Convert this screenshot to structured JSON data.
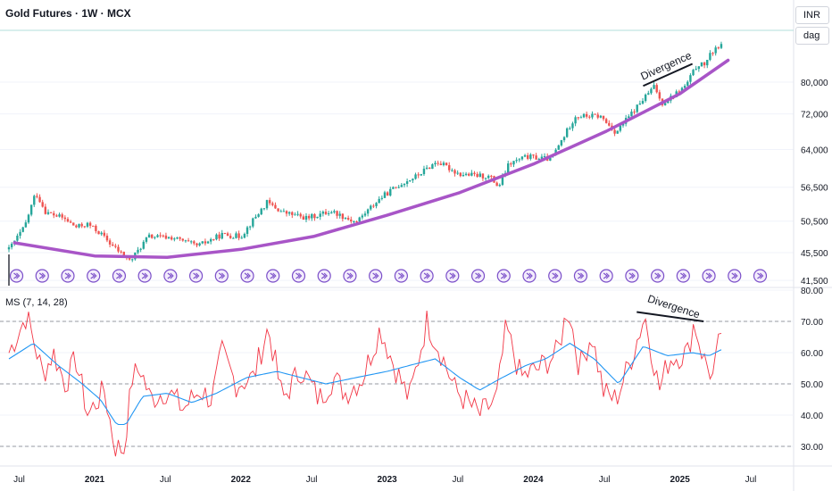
{
  "header": {
    "title": "Gold Futures · 1W · MCX"
  },
  "currency_button": "INR",
  "unit_button": "dag",
  "indicator": {
    "label": "MS (7, 14, 28)"
  },
  "annotations": {
    "price_divergence": "Divergence",
    "osc_divergence": "Divergence"
  },
  "colors": {
    "up": "#26a69a",
    "down": "#ef5350",
    "curve": "#a855c7",
    "fast": "#f23645",
    "slow": "#2196f3",
    "event": "#7b4fc9",
    "grid": "#f0f3fa",
    "axis_text": "#131722",
    "dashed": "#9598a1"
  },
  "icons": {
    "event_marker": "dividend-event-icon"
  },
  "chart_data": [
    {
      "type": "candlestick",
      "title": "Gold Futures · 1W · MCX",
      "scale": "log",
      "y_ticks": [
        41500,
        45500,
        50500,
        56500,
        64000,
        72000,
        80000
      ],
      "x_tick_labels": [
        "Jul",
        "2021",
        "Jul",
        "2022",
        "Jul",
        "2023",
        "Jul",
        "2024",
        "Jul",
        "2025",
        "Jul"
      ],
      "x_range": [
        "2020-06",
        "2025-08"
      ],
      "anchors": [
        {
          "date": "2020-06-01",
          "close": 46000
        },
        {
          "date": "2020-07-10",
          "close": 49500
        },
        {
          "date": "2020-08-07",
          "close": 55500
        },
        {
          "date": "2020-09-01",
          "close": 52000
        },
        {
          "date": "2020-10-15",
          "close": 51000
        },
        {
          "date": "2020-11-15",
          "close": 49500
        },
        {
          "date": "2020-12-15",
          "close": 50000
        },
        {
          "date": "2021-01-15",
          "close": 48500
        },
        {
          "date": "2021-02-15",
          "close": 46500
        },
        {
          "date": "2021-03-31",
          "close": 44200
        },
        {
          "date": "2021-05-15",
          "close": 48000
        },
        {
          "date": "2021-07-15",
          "close": 47800
        },
        {
          "date": "2021-09-15",
          "close": 46500
        },
        {
          "date": "2021-11-15",
          "close": 48300
        },
        {
          "date": "2022-01-01",
          "close": 48000
        },
        {
          "date": "2022-03-07",
          "close": 53700
        },
        {
          "date": "2022-04-15",
          "close": 52000
        },
        {
          "date": "2022-06-15",
          "close": 51000
        },
        {
          "date": "2022-08-15",
          "close": 52200
        },
        {
          "date": "2022-10-15",
          "close": 50300
        },
        {
          "date": "2022-12-15",
          "close": 54500
        },
        {
          "date": "2023-02-01",
          "close": 57000
        },
        {
          "date": "2023-03-15",
          "close": 58600
        },
        {
          "date": "2023-05-05",
          "close": 61500
        },
        {
          "date": "2023-07-01",
          "close": 59000
        },
        {
          "date": "2023-09-15",
          "close": 58500
        },
        {
          "date": "2023-10-06",
          "close": 56500
        },
        {
          "date": "2023-11-01",
          "close": 61000
        },
        {
          "date": "2023-12-15",
          "close": 62500
        },
        {
          "date": "2024-02-15",
          "close": 62000
        },
        {
          "date": "2024-03-15",
          "close": 66500
        },
        {
          "date": "2024-04-15",
          "close": 71500
        },
        {
          "date": "2024-05-15",
          "close": 71500
        },
        {
          "date": "2024-06-15",
          "close": 71500
        },
        {
          "date": "2024-07-25",
          "close": 67700
        },
        {
          "date": "2024-09-01",
          "close": 72000
        },
        {
          "date": "2024-10-30",
          "close": 79000
        },
        {
          "date": "2024-11-15",
          "close": 74500
        },
        {
          "date": "2024-12-15",
          "close": 76500
        },
        {
          "date": "2025-01-15",
          "close": 79000
        },
        {
          "date": "2025-02-15",
          "close": 85000
        },
        {
          "date": "2025-03-01",
          "close": 84500
        },
        {
          "date": "2025-04-01",
          "close": 90000
        }
      ],
      "support_curve": [
        {
          "date": "2020-06-15",
          "value": 47000
        },
        {
          "date": "2021-01-01",
          "value": 45000
        },
        {
          "date": "2021-07-01",
          "value": 44800
        },
        {
          "date": "2022-01-01",
          "value": 46000
        },
        {
          "date": "2022-07-01",
          "value": 48000
        },
        {
          "date": "2023-01-01",
          "value": 51500
        },
        {
          "date": "2023-07-01",
          "value": 55500
        },
        {
          "date": "2024-01-01",
          "value": 61000
        },
        {
          "date": "2024-07-01",
          "value": 68000
        },
        {
          "date": "2025-01-01",
          "value": 77000
        },
        {
          "date": "2025-05-01",
          "value": 86000
        }
      ],
      "divergence_line": [
        {
          "date": "2024-10-01",
          "value": 79000
        },
        {
          "date": "2025-02-01",
          "value": 85000
        }
      ]
    },
    {
      "type": "line",
      "title": "MS (7, 14, 28)",
      "ylim": [
        25,
        80
      ],
      "y_ticks": [
        30,
        40,
        50,
        60,
        70,
        80
      ],
      "reference_lines": [
        30,
        50,
        70
      ],
      "series": [
        {
          "name": "fast",
          "anchors": [
            {
              "date": "2020-06-01",
              "value": 60
            },
            {
              "date": "2020-07-15",
              "value": 72
            },
            {
              "date": "2020-08-25",
              "value": 53
            },
            {
              "date": "2020-09-20",
              "value": 60
            },
            {
              "date": "2020-10-20",
              "value": 50
            },
            {
              "date": "2020-11-15",
              "value": 58
            },
            {
              "date": "2020-12-15",
              "value": 40
            },
            {
              "date": "2021-01-25",
              "value": 48
            },
            {
              "date": "2021-02-20",
              "value": 30
            },
            {
              "date": "2021-03-15",
              "value": 29
            },
            {
              "date": "2021-04-05",
              "value": 52
            },
            {
              "date": "2021-04-25",
              "value": 55
            },
            {
              "date": "2021-05-20",
              "value": 45
            },
            {
              "date": "2021-07-01",
              "value": 48
            },
            {
              "date": "2021-08-10",
              "value": 42
            },
            {
              "date": "2021-09-20",
              "value": 48
            },
            {
              "date": "2021-10-20",
              "value": 45
            },
            {
              "date": "2021-11-15",
              "value": 60
            },
            {
              "date": "2021-12-20",
              "value": 50
            },
            {
              "date": "2022-02-01",
              "value": 52
            },
            {
              "date": "2022-03-10",
              "value": 68
            },
            {
              "date": "2022-04-15",
              "value": 45
            },
            {
              "date": "2022-06-01",
              "value": 55
            },
            {
              "date": "2022-07-15",
              "value": 45
            },
            {
              "date": "2022-08-20",
              "value": 52
            },
            {
              "date": "2022-09-20",
              "value": 47
            },
            {
              "date": "2022-11-01",
              "value": 52
            },
            {
              "date": "2022-12-15",
              "value": 68
            },
            {
              "date": "2023-01-15",
              "value": 57
            },
            {
              "date": "2023-02-25",
              "value": 45
            },
            {
              "date": "2023-04-10",
              "value": 70
            },
            {
              "date": "2023-05-15",
              "value": 60
            },
            {
              "date": "2023-06-20",
              "value": 48
            },
            {
              "date": "2023-08-20",
              "value": 40
            },
            {
              "date": "2023-10-01",
              "value": 45
            },
            {
              "date": "2023-10-25",
              "value": 68
            },
            {
              "date": "2023-12-01",
              "value": 52
            },
            {
              "date": "2024-01-15",
              "value": 55
            },
            {
              "date": "2024-03-01",
              "value": 60
            },
            {
              "date": "2024-03-28",
              "value": 75
            },
            {
              "date": "2024-04-25",
              "value": 55
            },
            {
              "date": "2024-05-25",
              "value": 66
            },
            {
              "date": "2024-06-25",
              "value": 47
            },
            {
              "date": "2024-07-25",
              "value": 45
            },
            {
              "date": "2024-09-01",
              "value": 58
            },
            {
              "date": "2024-10-05",
              "value": 72
            },
            {
              "date": "2024-11-10",
              "value": 48
            },
            {
              "date": "2024-12-05",
              "value": 58
            },
            {
              "date": "2025-01-20",
              "value": 60
            },
            {
              "date": "2025-02-05",
              "value": 70
            },
            {
              "date": "2025-03-01",
              "value": 58
            },
            {
              "date": "2025-03-25",
              "value": 52
            },
            {
              "date": "2025-04-15",
              "value": 68
            }
          ]
        },
        {
          "name": "slow",
          "anchors": [
            {
              "date": "2020-06-01",
              "value": 58
            },
            {
              "date": "2020-08-01",
              "value": 63
            },
            {
              "date": "2020-10-01",
              "value": 56
            },
            {
              "date": "2020-12-01",
              "value": 50
            },
            {
              "date": "2021-01-15",
              "value": 45
            },
            {
              "date": "2021-02-25",
              "value": 37
            },
            {
              "date": "2021-03-20",
              "value": 37
            },
            {
              "date": "2021-05-01",
              "value": 46
            },
            {
              "date": "2021-07-01",
              "value": 47
            },
            {
              "date": "2021-09-01",
              "value": 44
            },
            {
              "date": "2021-11-01",
              "value": 47
            },
            {
              "date": "2022-01-15",
              "value": 52
            },
            {
              "date": "2022-04-01",
              "value": 54
            },
            {
              "date": "2022-06-01",
              "value": 52
            },
            {
              "date": "2022-08-01",
              "value": 50
            },
            {
              "date": "2022-10-15",
              "value": 52
            },
            {
              "date": "2023-01-01",
              "value": 54
            },
            {
              "date": "2023-03-01",
              "value": 56
            },
            {
              "date": "2023-05-01",
              "value": 58
            },
            {
              "date": "2023-07-01",
              "value": 52
            },
            {
              "date": "2023-08-20",
              "value": 48
            },
            {
              "date": "2023-10-15",
              "value": 52
            },
            {
              "date": "2023-12-15",
              "value": 56
            },
            {
              "date": "2024-02-01",
              "value": 58
            },
            {
              "date": "2024-04-01",
              "value": 63
            },
            {
              "date": "2024-06-01",
              "value": 58
            },
            {
              "date": "2024-08-01",
              "value": 50
            },
            {
              "date": "2024-10-01",
              "value": 62
            },
            {
              "date": "2024-12-01",
              "value": 59
            },
            {
              "date": "2025-02-01",
              "value": 60
            },
            {
              "date": "2025-03-15",
              "value": 59
            },
            {
              "date": "2025-04-15",
              "value": 61
            }
          ]
        }
      ],
      "divergence_line": [
        {
          "date": "2024-09-15",
          "value": 73
        },
        {
          "date": "2025-03-01",
          "value": 70
        }
      ]
    }
  ]
}
